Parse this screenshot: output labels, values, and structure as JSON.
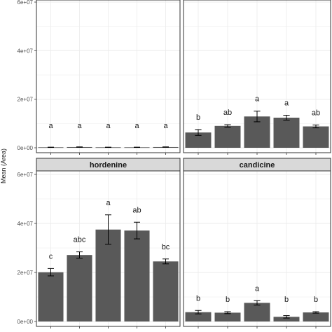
{
  "chart_data": {
    "type": "bar",
    "ylabel": "Mean (Area)",
    "ylim": [
      0,
      60000000
    ],
    "yticks": [
      0,
      20000000,
      40000000,
      60000000
    ],
    "ytick_labels": [
      "0e+00",
      "2e+07",
      "4e+07",
      "6e+07"
    ],
    "grid": true,
    "colors": {
      "bar": "#595959",
      "strip": "#d9d9d9",
      "panel_border": "#333333",
      "grid": "#ebebeb"
    },
    "panels": [
      {
        "strip": "",
        "values": [
          200000,
          300000,
          200000,
          200000,
          300000
        ],
        "errors": [
          50000,
          80000,
          50000,
          50000,
          80000
        ],
        "letters": [
          "a",
          "a",
          "a",
          "a",
          "a"
        ]
      },
      {
        "strip": "",
        "values": [
          6300000,
          9000000,
          12900000,
          12400000,
          8800000
        ],
        "errors": [
          1200000,
          500000,
          2200000,
          1000000,
          600000
        ],
        "letters": [
          "b",
          "ab",
          "a",
          "a",
          "ab"
        ]
      },
      {
        "strip": "hordenine",
        "values": [
          20100000,
          27100000,
          37500000,
          37100000,
          24500000
        ],
        "errors": [
          1500000,
          1300000,
          6000000,
          3400000,
          1000000
        ],
        "letters": [
          "c",
          "abc",
          "a",
          "ab",
          "bc"
        ]
      },
      {
        "strip": "candicine",
        "values": [
          3800000,
          3600000,
          7600000,
          1900000,
          3700000
        ],
        "errors": [
          700000,
          400000,
          900000,
          500000,
          300000
        ],
        "letters": [
          "b",
          "b",
          "a",
          "b",
          "b"
        ]
      }
    ]
  }
}
